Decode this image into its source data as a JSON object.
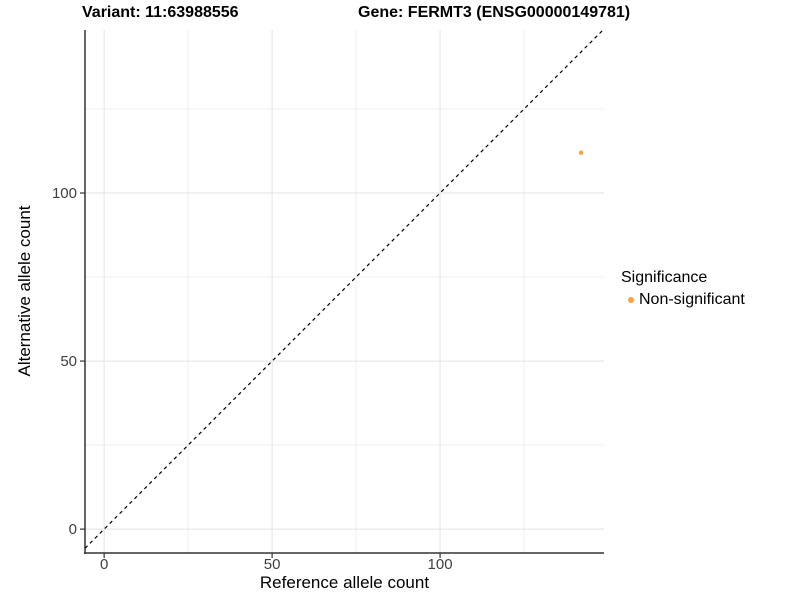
{
  "chart_data": {
    "type": "scatter",
    "title_left": "Variant: 11:63988556",
    "title_right": "Gene: FERMT3 (ENSG00000149781)",
    "xlabel": "Reference allele count",
    "ylabel": "Alternative allele count",
    "xlim": [
      -5.7,
      148.8
    ],
    "ylim": [
      -7.1,
      148.5
    ],
    "x_ticks": [
      0,
      50,
      100
    ],
    "y_ticks": [
      0,
      50,
      100
    ],
    "minor_grid_step": 25,
    "grid": true,
    "identity_line": {
      "slope": 1,
      "intercept": 0,
      "style": "dashed",
      "color": "#000000"
    },
    "series": [
      {
        "name": "Non-significant",
        "color": "#F8A243",
        "points": [
          {
            "x": 142,
            "y": 112
          }
        ]
      }
    ],
    "legend": {
      "title": "Significance",
      "position": "right",
      "items": [
        {
          "label": "Non-significant",
          "color": "#F8A243"
        }
      ]
    },
    "colors": {
      "background": "#FFFFFF",
      "grid_major": "#E3E3E3",
      "grid_minor": "#EFEFEF",
      "axis_line": "#333333",
      "tick_text": "#404040",
      "title_text": "#000000"
    }
  }
}
